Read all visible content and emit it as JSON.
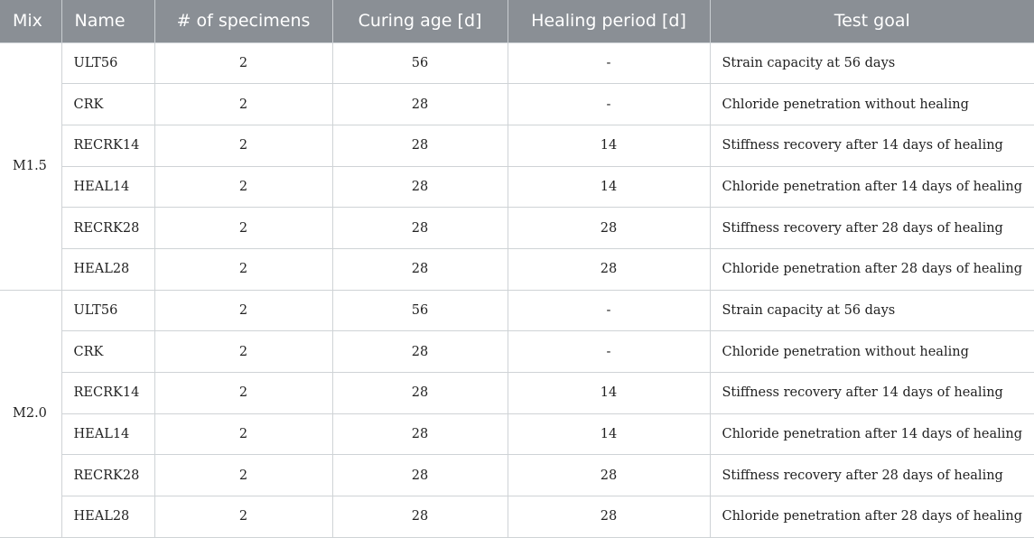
{
  "table": {
    "headers": [
      "Mix",
      "Name",
      "# of specimens",
      "Curing age [d]",
      "Healing period [d]",
      "Test goal"
    ],
    "groups": [
      {
        "mix": "M1.5",
        "rows": [
          [
            "ULT56",
            "2",
            "56",
            "-",
            "Strain capacity at 56 days"
          ],
          [
            "CRK",
            "2",
            "28",
            "-",
            "Chloride penetration without healing"
          ],
          [
            "RECRK14",
            "2",
            "28",
            "14",
            "Stiffness recovery after 14 days of healing"
          ],
          [
            "HEAL14",
            "2",
            "28",
            "14",
            "Chloride penetration after 14 days of healing"
          ],
          [
            "RECRK28",
            "2",
            "28",
            "28",
            "Stiffness recovery after 28 days of healing"
          ],
          [
            "HEAL28",
            "2",
            "28",
            "28",
            "Chloride penetration after 28 days of healing"
          ]
        ]
      },
      {
        "mix": "M2.0",
        "rows": [
          [
            "ULT56",
            "2",
            "56",
            "-",
            "Strain capacity at 56 days"
          ],
          [
            "CRK",
            "2",
            "28",
            "-",
            "Chloride penetration without healing"
          ],
          [
            "RECRK14",
            "2",
            "28",
            "14",
            "Stiffness recovery after 14 days of healing"
          ],
          [
            "HEAL14",
            "2",
            "28",
            "14",
            "Chloride penetration after 14 days of healing"
          ],
          [
            "RECRK28",
            "2",
            "28",
            "28",
            "Stiffness recovery after 28 days of healing"
          ],
          [
            "HEAL28",
            "2",
            "28",
            "28",
            "Chloride penetration after 28 days of healing"
          ]
        ]
      }
    ]
  }
}
